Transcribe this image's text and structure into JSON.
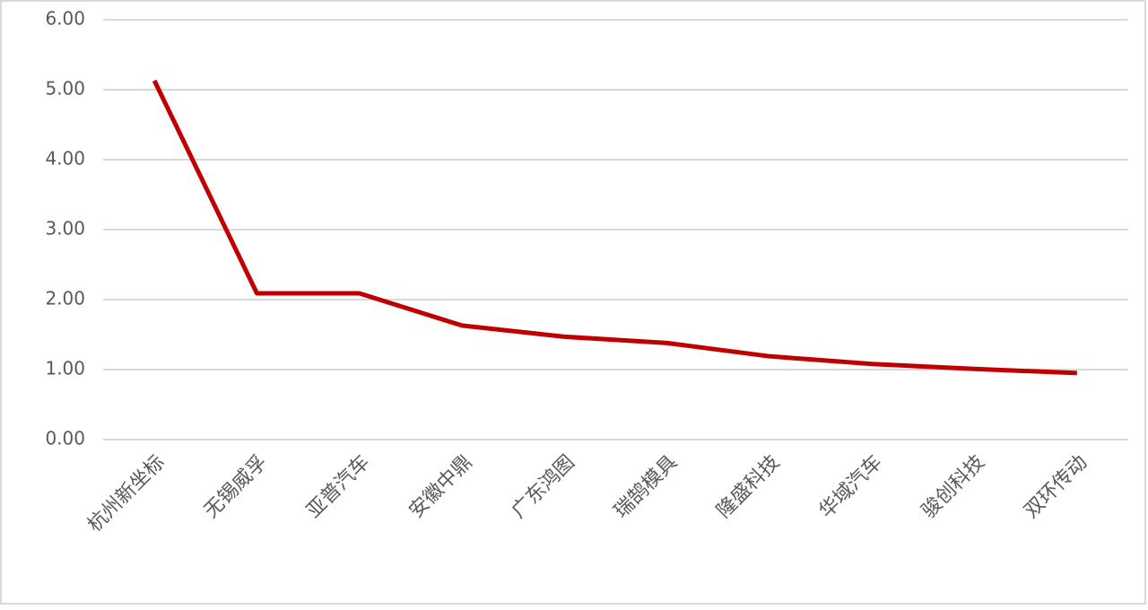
{
  "chart_data": {
    "type": "line",
    "categories": [
      "杭州新坐标",
      "无锡威孚",
      "亚普汽车",
      "安徽中鼎",
      "广东鸿图",
      "瑞鹄模具",
      "隆盛科技",
      "华域汽车",
      "骏创科技",
      "双环传动"
    ],
    "series": [
      {
        "color": "#c00000",
        "values": [
          5.13,
          2.09,
          2.09,
          1.63,
          1.47,
          1.38,
          1.19,
          1.08,
          1.01,
          0.95
        ]
      }
    ],
    "ylim": [
      0,
      6
    ],
    "yticks": [
      {
        "value": 0,
        "label": "0.00"
      },
      {
        "value": 1,
        "label": "1.00"
      },
      {
        "value": 2,
        "label": "2.00"
      },
      {
        "value": 3,
        "label": "3.00"
      },
      {
        "value": 4,
        "label": "4.00"
      },
      {
        "value": 5,
        "label": "5.00"
      },
      {
        "value": 6,
        "label": "6.00"
      }
    ],
    "grid": true
  }
}
